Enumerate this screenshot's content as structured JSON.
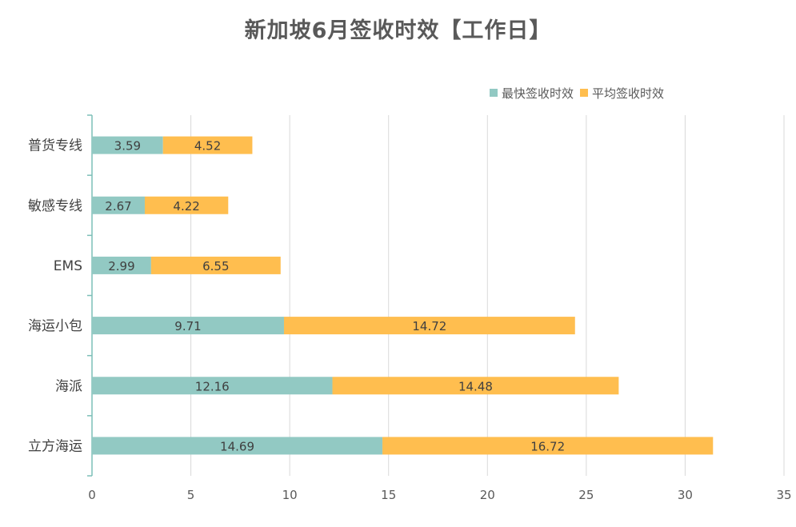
{
  "chart_data": {
    "type": "bar",
    "orientation": "horizontal",
    "stacked": true,
    "title": "新加坡6月签收时效【工作日】",
    "categories": [
      "普货专线",
      "敏感专线",
      "EMS",
      "海运小包",
      "海派",
      "立方海运"
    ],
    "series": [
      {
        "name": "最快签收时效",
        "color": "#92C9C3",
        "values": [
          3.59,
          2.67,
          2.99,
          9.71,
          12.16,
          14.69
        ]
      },
      {
        "name": "平均签收时效",
        "color": "#FFBE4F",
        "values": [
          4.52,
          4.22,
          6.55,
          14.72,
          14.48,
          16.72
        ]
      }
    ],
    "xlim": [
      0,
      35
    ],
    "x_ticks": [
      0,
      5,
      10,
      15,
      20,
      25,
      30,
      35
    ],
    "grid": true,
    "legend_position": "top-right",
    "axis_color": "#7DBFB8",
    "grid_color": "#D9D9D9"
  }
}
